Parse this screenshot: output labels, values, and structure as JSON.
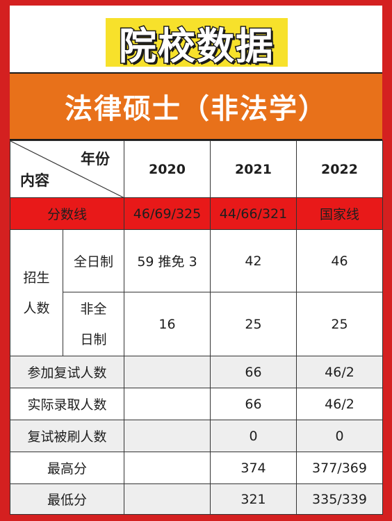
{
  "page": {
    "title": "院校数据",
    "subtitle": "法律硕士（非法学）"
  },
  "colors": {
    "background": "#d42020",
    "title_chip": "#f7e12b",
    "banner": "#e8711a",
    "score_row": "#e81919",
    "grey_row": "#eeeeee"
  },
  "table": {
    "corner_year": "年份",
    "corner_content": "内容",
    "years": [
      "2020",
      "2021",
      "2022"
    ],
    "score_row": {
      "label": "分数线",
      "values": [
        "46/69/325",
        "44/66/321",
        "国家线"
      ]
    },
    "enrollment": {
      "group_line1": "招生",
      "group_line2": "人数",
      "fulltime": {
        "label": "全日制",
        "values": [
          "59 推免 3",
          "42",
          "46"
        ]
      },
      "parttime": {
        "label_line1": "非全",
        "label_line2": "日制",
        "values": [
          "16",
          "25",
          "25"
        ]
      }
    },
    "rows": [
      {
        "label": "参加复试人数",
        "values": [
          "",
          "66",
          "46/2"
        ]
      },
      {
        "label": "实际录取人数",
        "values": [
          "",
          "66",
          "46/2"
        ]
      },
      {
        "label": "复试被刷人数",
        "values": [
          "",
          "0",
          "0"
        ]
      },
      {
        "label": "最高分",
        "values": [
          "",
          "374",
          "377/369"
        ]
      },
      {
        "label": "最低分",
        "values": [
          "",
          "321",
          "335/339"
        ]
      }
    ]
  }
}
